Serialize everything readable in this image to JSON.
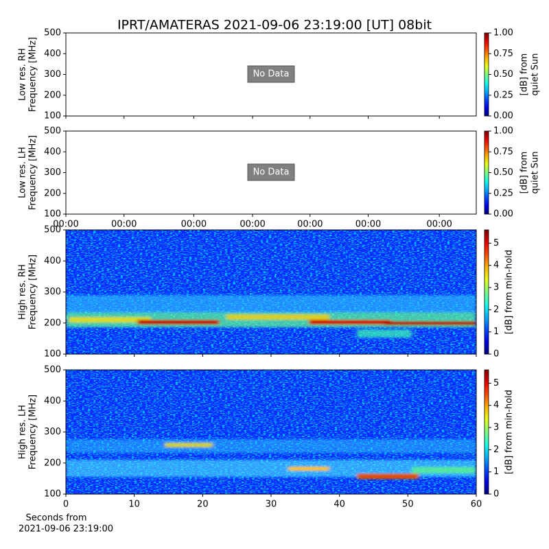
{
  "chart_data": [
    {
      "type": "spectrogram",
      "title": "IPRT/AMATERAS 2021-09-06 23:19:00 [UT]   08bit",
      "ylabel": [
        "Low res. RH",
        "Frequency [MHz]"
      ],
      "ylim": [
        100,
        500
      ],
      "yticks": [
        100,
        200,
        300,
        400,
        500
      ],
      "annotation": "No Data",
      "colormap": "jet",
      "colorbar": {
        "label": [
          "[dB] from",
          "quiet Sun"
        ],
        "lim": [
          0,
          1
        ],
        "ticks": [
          {
            "value": 0,
            "label": "0.00"
          },
          {
            "value": 0.25,
            "label": "0.25"
          },
          {
            "value": 0.5,
            "label": "0.50"
          },
          {
            "value": 0.75,
            "label": "0.75"
          },
          {
            "value": 1,
            "label": "1.00"
          }
        ]
      }
    },
    {
      "type": "spectrogram",
      "ylabel": [
        "Low res. LH",
        "Frequency [MHz]"
      ],
      "ylim": [
        100,
        500
      ],
      "yticks": [
        100,
        200,
        300,
        400,
        500
      ],
      "annotation": "No Data",
      "colormap": "jet",
      "xlim": [
        0,
        60
      ],
      "xticks": [
        {
          "value": 0,
          "label": "00:00"
        },
        {
          "value": 8.5,
          "label": "00:00"
        },
        {
          "value": 18.7,
          "label": "00:00"
        },
        {
          "value": 27.3,
          "label": "00:00"
        },
        {
          "value": 35.7,
          "label": "00:00"
        },
        {
          "value": 44.2,
          "label": "00:00"
        },
        {
          "value": 54.6,
          "label": "00:00"
        }
      ],
      "colorbar": {
        "label": [
          "[dB] from",
          "quiet Sun"
        ],
        "lim": [
          0,
          1
        ],
        "ticks": [
          {
            "value": 0,
            "label": "0.00"
          },
          {
            "value": 0.25,
            "label": "0.25"
          },
          {
            "value": 0.5,
            "label": "0.50"
          },
          {
            "value": 0.75,
            "label": "0.75"
          },
          {
            "value": 1,
            "label": "1.00"
          }
        ]
      }
    },
    {
      "type": "spectrogram",
      "ylabel": [
        "High res. RH",
        "Frequency [MHz]"
      ],
      "ylim": [
        100,
        500
      ],
      "yticks": [
        100,
        200,
        300,
        400,
        500
      ],
      "colormap": "jet",
      "colorbar": {
        "label": [
          "[dB] from min-hold"
        ],
        "lim": [
          0,
          5.6
        ],
        "ticks": [
          0,
          1,
          2,
          3,
          4,
          5
        ]
      }
    },
    {
      "type": "spectrogram",
      "ylabel": [
        "High res. LH",
        "Frequency [MHz]"
      ],
      "ylim": [
        100,
        500
      ],
      "yticks": [
        100,
        200,
        300,
        400,
        500
      ],
      "colormap": "jet",
      "xlim": [
        0,
        60
      ],
      "xticks": [
        0,
        10,
        20,
        30,
        40,
        50,
        60
      ],
      "xlabel": [
        "Seconds from",
        "2021-09-06 23:19:00"
      ],
      "colorbar": {
        "label": [
          "[dB] from min-hold"
        ],
        "lim": [
          0,
          5.6
        ],
        "ticks": [
          0,
          1,
          2,
          3,
          4,
          5
        ]
      }
    }
  ]
}
